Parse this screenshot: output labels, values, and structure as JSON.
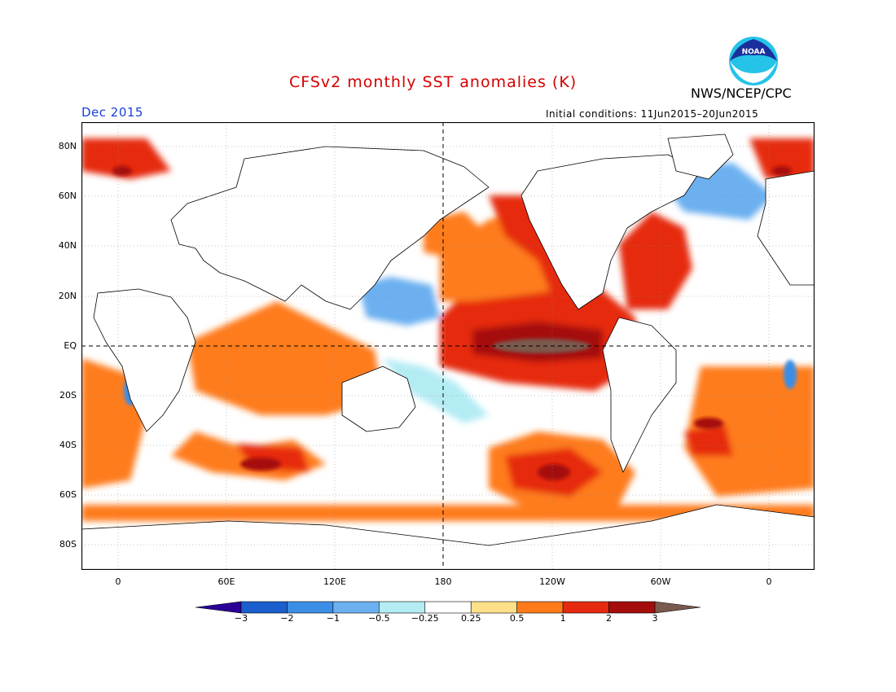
{
  "header": {
    "title": "CFSv2 monthly SST anomalies (K)",
    "target_month": "Dec 2015",
    "initial_conditions": "Initial conditions: 11Jun2015–20Jun2015",
    "agency": "NWS/NCEP/CPC",
    "logo_text": "NOAA"
  },
  "axes": {
    "lat_labels": [
      "80N",
      "60N",
      "40N",
      "20N",
      "EQ",
      "20S",
      "40S",
      "60S",
      "80S"
    ],
    "lon_labels": [
      "0",
      "60E",
      "120E",
      "180",
      "120W",
      "60W",
      "0"
    ]
  },
  "colorbar": {
    "labels": [
      "−3",
      "−2",
      "−1",
      "−0.5",
      "−0.25",
      "0.25",
      "0.5",
      "1",
      "2",
      "3"
    ],
    "colors": [
      "#2a0096",
      "#1b5fce",
      "#3b8ee6",
      "#6cb0f0",
      "#b4ecf4",
      "#ffffff",
      "#ffe08a",
      "#ff7b1a",
      "#e62a10",
      "#a50d0d",
      "#7a5a4e"
    ]
  },
  "map_style": {
    "ocean_neutral": "#ffffff",
    "coastline": "#000000",
    "reference_lines": "dashed black at Equator and 180"
  }
}
